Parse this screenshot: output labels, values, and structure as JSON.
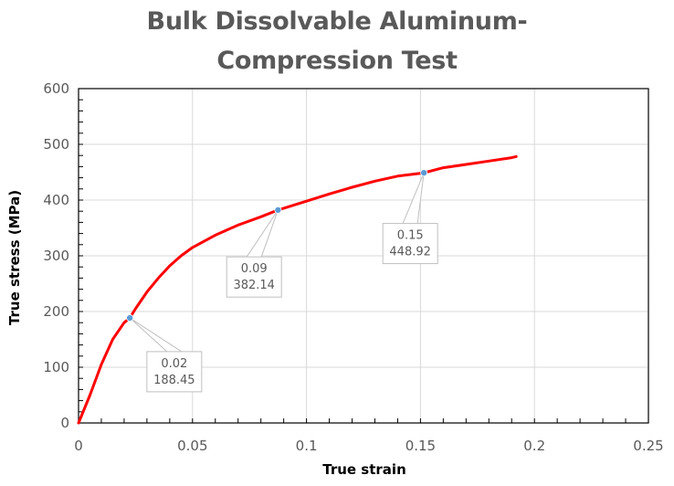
{
  "chart_data": {
    "type": "line",
    "title_lines": [
      "Bulk Dissolvable Aluminum-",
      "Compression Test"
    ],
    "xlabel": "True strain",
    "ylabel": "True stress (MPa)",
    "xlim": [
      0,
      0.25
    ],
    "ylim": [
      0,
      600
    ],
    "xticks": [
      0,
      0.05,
      0.1,
      0.15,
      0.2,
      0.25
    ],
    "xtick_labels": [
      "0",
      "0.05",
      "0.1",
      "0.15",
      "0.2",
      "0.25"
    ],
    "yticks": [
      0,
      100,
      200,
      300,
      400,
      500,
      600
    ],
    "ytick_labels": [
      "0",
      "100",
      "200",
      "300",
      "400",
      "500",
      "600"
    ],
    "grid": true,
    "legend": false,
    "series": [
      {
        "color": "#ff0000",
        "x": [
          0,
          0.005,
          0.01,
          0.015,
          0.02,
          0.0225,
          0.025,
          0.03,
          0.035,
          0.04,
          0.045,
          0.05,
          0.06,
          0.07,
          0.08,
          0.0875,
          0.1,
          0.11,
          0.12,
          0.13,
          0.14,
          0.1515,
          0.16,
          0.17,
          0.18,
          0.19,
          0.192
        ],
        "y": [
          0,
          50,
          105,
          150,
          180,
          188.45,
          205,
          235,
          260,
          282,
          300,
          315,
          337,
          355,
          370,
          382.14,
          398,
          411,
          423,
          434,
          443,
          448.92,
          458,
          464,
          470,
          476,
          478
        ]
      }
    ],
    "annotations": [
      {
        "x": 0.0225,
        "y": 188.45,
        "lines": [
          "0.02",
          "188.45"
        ],
        "box_x": 0.042,
        "box_y": 92
      },
      {
        "x": 0.0875,
        "y": 382.14,
        "lines": [
          "0.09",
          "382.14"
        ],
        "box_x": 0.077,
        "box_y": 262
      },
      {
        "x": 0.1515,
        "y": 448.92,
        "lines": [
          "0.15",
          "448.92"
        ],
        "box_x": 0.1455,
        "box_y": 322
      }
    ],
    "colors": {
      "line": "#ff0000",
      "marker": "#5b9bd5",
      "grid": "#d9d9d9",
      "axis": "#000000",
      "callout_border": "#bfbfbf"
    }
  }
}
